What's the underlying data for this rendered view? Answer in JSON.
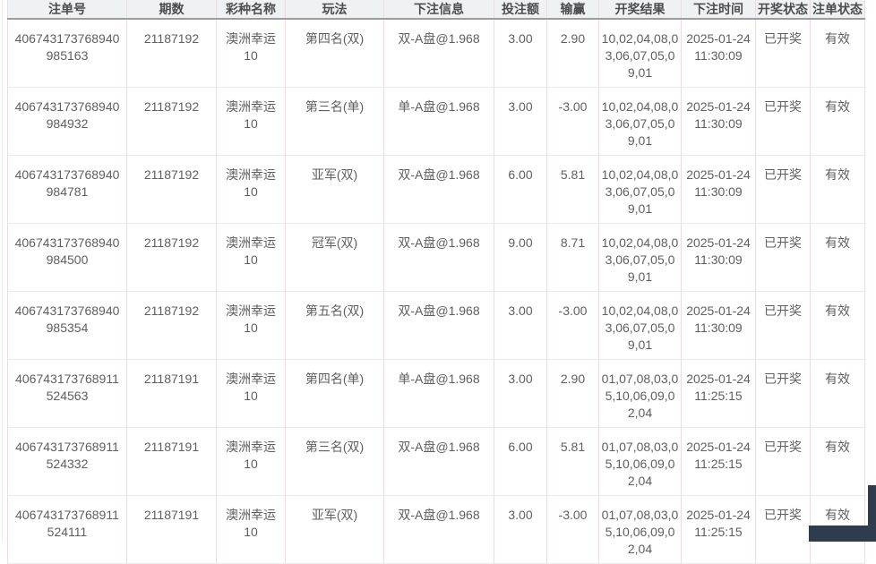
{
  "colors": {
    "header_bg": "#eef2f5",
    "header_divider_pink": "#f3d9d9",
    "header_underline_gray": "#9c9c9c",
    "cell_divider_pink": "#efdddd",
    "row_divider_gray": "#e9e9e9",
    "body_text": "#5f5f5f",
    "corner_dark": "#2f3c4d"
  },
  "table": {
    "columns": [
      {
        "key": "order_no",
        "label": "注单号"
      },
      {
        "key": "period",
        "label": "期数"
      },
      {
        "key": "lottery",
        "label": "彩种名称"
      },
      {
        "key": "play",
        "label": "玩法"
      },
      {
        "key": "bet_info",
        "label": "下注信息"
      },
      {
        "key": "bet_amount",
        "label": "投注额"
      },
      {
        "key": "win_loss",
        "label": "输赢"
      },
      {
        "key": "result",
        "label": "开奖结果"
      },
      {
        "key": "bet_time",
        "label": "下注时间"
      },
      {
        "key": "draw_status",
        "label": "开奖状态"
      },
      {
        "key": "order_status",
        "label": "注单状态"
      }
    ],
    "rows": [
      {
        "cells": [
          "406743173768940985163",
          "21187192",
          "澳洲幸运10",
          "第四名(双)",
          "双-A盘@1.968",
          "3.00",
          "2.90",
          "10,02,04,08,03,06,07,05,09,01",
          "2025-01-24 11:30:09",
          "已开奖",
          "有效"
        ]
      },
      {
        "cells": [
          "406743173768940984932",
          "21187192",
          "澳洲幸运10",
          "第三名(单)",
          "单-A盘@1.968",
          "3.00",
          "-3.00",
          "10,02,04,08,03,06,07,05,09,01",
          "2025-01-24 11:30:09",
          "已开奖",
          "有效"
        ]
      },
      {
        "cells": [
          "406743173768940984781",
          "21187192",
          "澳洲幸运10",
          "亚军(双)",
          "双-A盘@1.968",
          "6.00",
          "5.81",
          "10,02,04,08,03,06,07,05,09,01",
          "2025-01-24 11:30:09",
          "已开奖",
          "有效"
        ]
      },
      {
        "cells": [
          "406743173768940984500",
          "21187192",
          "澳洲幸运10",
          "冠军(双)",
          "双-A盘@1.968",
          "9.00",
          "8.71",
          "10,02,04,08,03,06,07,05,09,01",
          "2025-01-24 11:30:09",
          "已开奖",
          "有效"
        ]
      },
      {
        "cells": [
          "406743173768940985354",
          "21187192",
          "澳洲幸运10",
          "第五名(双)",
          "双-A盘@1.968",
          "3.00",
          "-3.00",
          "10,02,04,08,03,06,07,05,09,01",
          "2025-01-24 11:30:09",
          "已开奖",
          "有效"
        ]
      },
      {
        "cells": [
          "406743173768911524563",
          "21187191",
          "澳洲幸运10",
          "第四名(单)",
          "单-A盘@1.968",
          "3.00",
          "2.90",
          "01,07,08,03,05,10,06,09,02,04",
          "2025-01-24 11:25:15",
          "已开奖",
          "有效"
        ]
      },
      {
        "cells": [
          "406743173768911524332",
          "21187191",
          "澳洲幸运10",
          "第三名(双)",
          "双-A盘@1.968",
          "6.00",
          "5.81",
          "01,07,08,03,05,10,06,09,02,04",
          "2025-01-24 11:25:15",
          "已开奖",
          "有效"
        ]
      },
      {
        "cells": [
          "406743173768911524111",
          "21187191",
          "澳洲幸运10",
          "亚军(双)",
          "双-A盘@1.968",
          "3.00",
          "-3.00",
          "01,07,08,03,05,10,06,09,02,04",
          "2025-01-24 11:25:15",
          "已开奖",
          "有效"
        ]
      }
    ]
  }
}
